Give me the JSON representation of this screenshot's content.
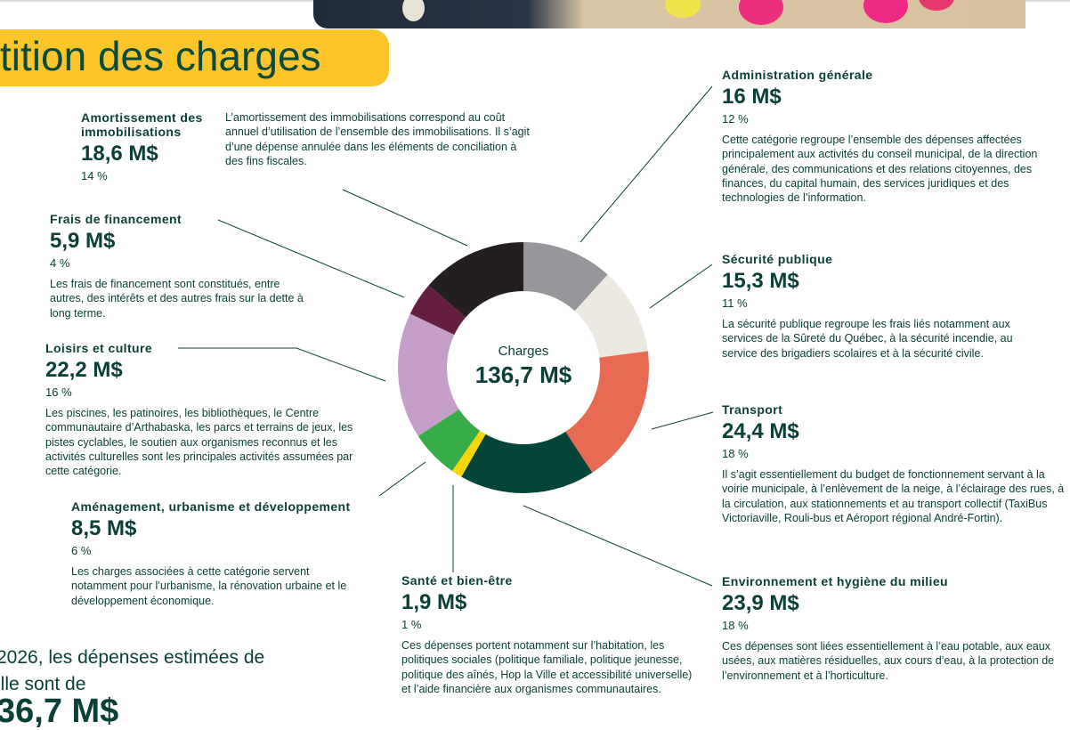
{
  "title": "tition des charges",
  "chart_data": {
    "type": "pie",
    "subtype": "donut",
    "center_label": "Charges",
    "center_value": "136,7 M$",
    "total": 136.7,
    "unit": "M$",
    "categories": [
      {
        "name": "Administration générale",
        "value": 16.0,
        "amount": "16 M$",
        "percent": "12 %",
        "color": "#97979b",
        "description": "Cette catégorie regroupe l’ensemble des dépenses affectées principalement aux activités du conseil municipal, de la direction générale, des communications et des relations citoyennes, des finances, du capital humain, des services juridiques et des technologies de l’information."
      },
      {
        "name": "Sécurité publique",
        "value": 15.3,
        "amount": "15,3 M$",
        "percent": "11 %",
        "color": "#ebe8e2",
        "description": "La sécurité publique regroupe les frais liés notamment aux services de la Sûreté du Québec, à la sécurité incendie, au service des brigadiers scolaires et à la sécurité civile."
      },
      {
        "name": "Transport",
        "value": 24.4,
        "amount": "24,4 M$",
        "percent": "18 %",
        "color": "#e96a53",
        "description": "Il s’agit essentiellement du budget de fonctionnement servant à la voirie municipale, à l’enlèvement de la neige, à l’éclairage des rues, à la circulation, aux stationnements et au transport collectif (TaxiBus Victoriaville, Rouli-bus et Aéroport régional André-Fortin)."
      },
      {
        "name": "Environnement et hygiène du milieu",
        "value": 23.9,
        "amount": "23,9 M$",
        "percent": "18 %",
        "color": "#054539",
        "description": "Ces dépenses sont liées essentiellement à l’eau potable, aux eaux usées, aux matières résiduelles, aux cours d’eau, à la protection de l’environnement et à l’horticulture."
      },
      {
        "name": "Santé et bien-être",
        "value": 1.9,
        "amount": "1,9 M$",
        "percent": "1 %",
        "color": "#f5d50c",
        "description": "Ces dépenses portent notamment sur l’habitation, les politiques sociales (politique familiale, politique jeunesse, politique des aînés, Hop la Ville et accessibilité universelle) et l’aide financière aux organismes communautaires."
      },
      {
        "name": "Aménagement, urbanisme et développement",
        "value": 8.5,
        "amount": "8,5 M$",
        "percent": "6 %",
        "color": "#37ad4a",
        "description": "Les charges associées à cette catégorie servent notamment pour l’urbanisme, la rénovation urbaine et le développement économique."
      },
      {
        "name": "Loisirs et culture",
        "value": 22.2,
        "amount": "22,2 M$",
        "percent": "16 %",
        "color": "#c59fca",
        "description": "Les piscines, les patinoires, les bibliothèques, le Centre communautaire d’Arthabaska, les parcs et terrains de jeux, les pistes cyclables, le soutien aux organismes reconnus et les activités culturelles sont les principales activités assumées par cette catégorie."
      },
      {
        "name": "Frais de financement",
        "value": 5.9,
        "amount": "5,9 M$",
        "percent": "4 %",
        "color": "#641f40",
        "description": "Les frais de financement sont constitués, entre autres, des intérêts et des autres frais sur la dette à long terme."
      },
      {
        "name": "Amortissement des immobilisations",
        "value": 18.6,
        "amount": "18,6 M$",
        "percent": "14 %",
        "color": "#231f20",
        "description": "L’amortissement des immobilisations correspond au coût annuel d’utilisation de l’ensemble des immobilisations. Il s’agit d’une dépense annulée dans les éléments de conciliation à des fins fiscales."
      }
    ]
  },
  "bottom": {
    "line1": "2026, les dépenses estimées de",
    "line2": "ille sont de",
    "big": "36,7 M$"
  }
}
